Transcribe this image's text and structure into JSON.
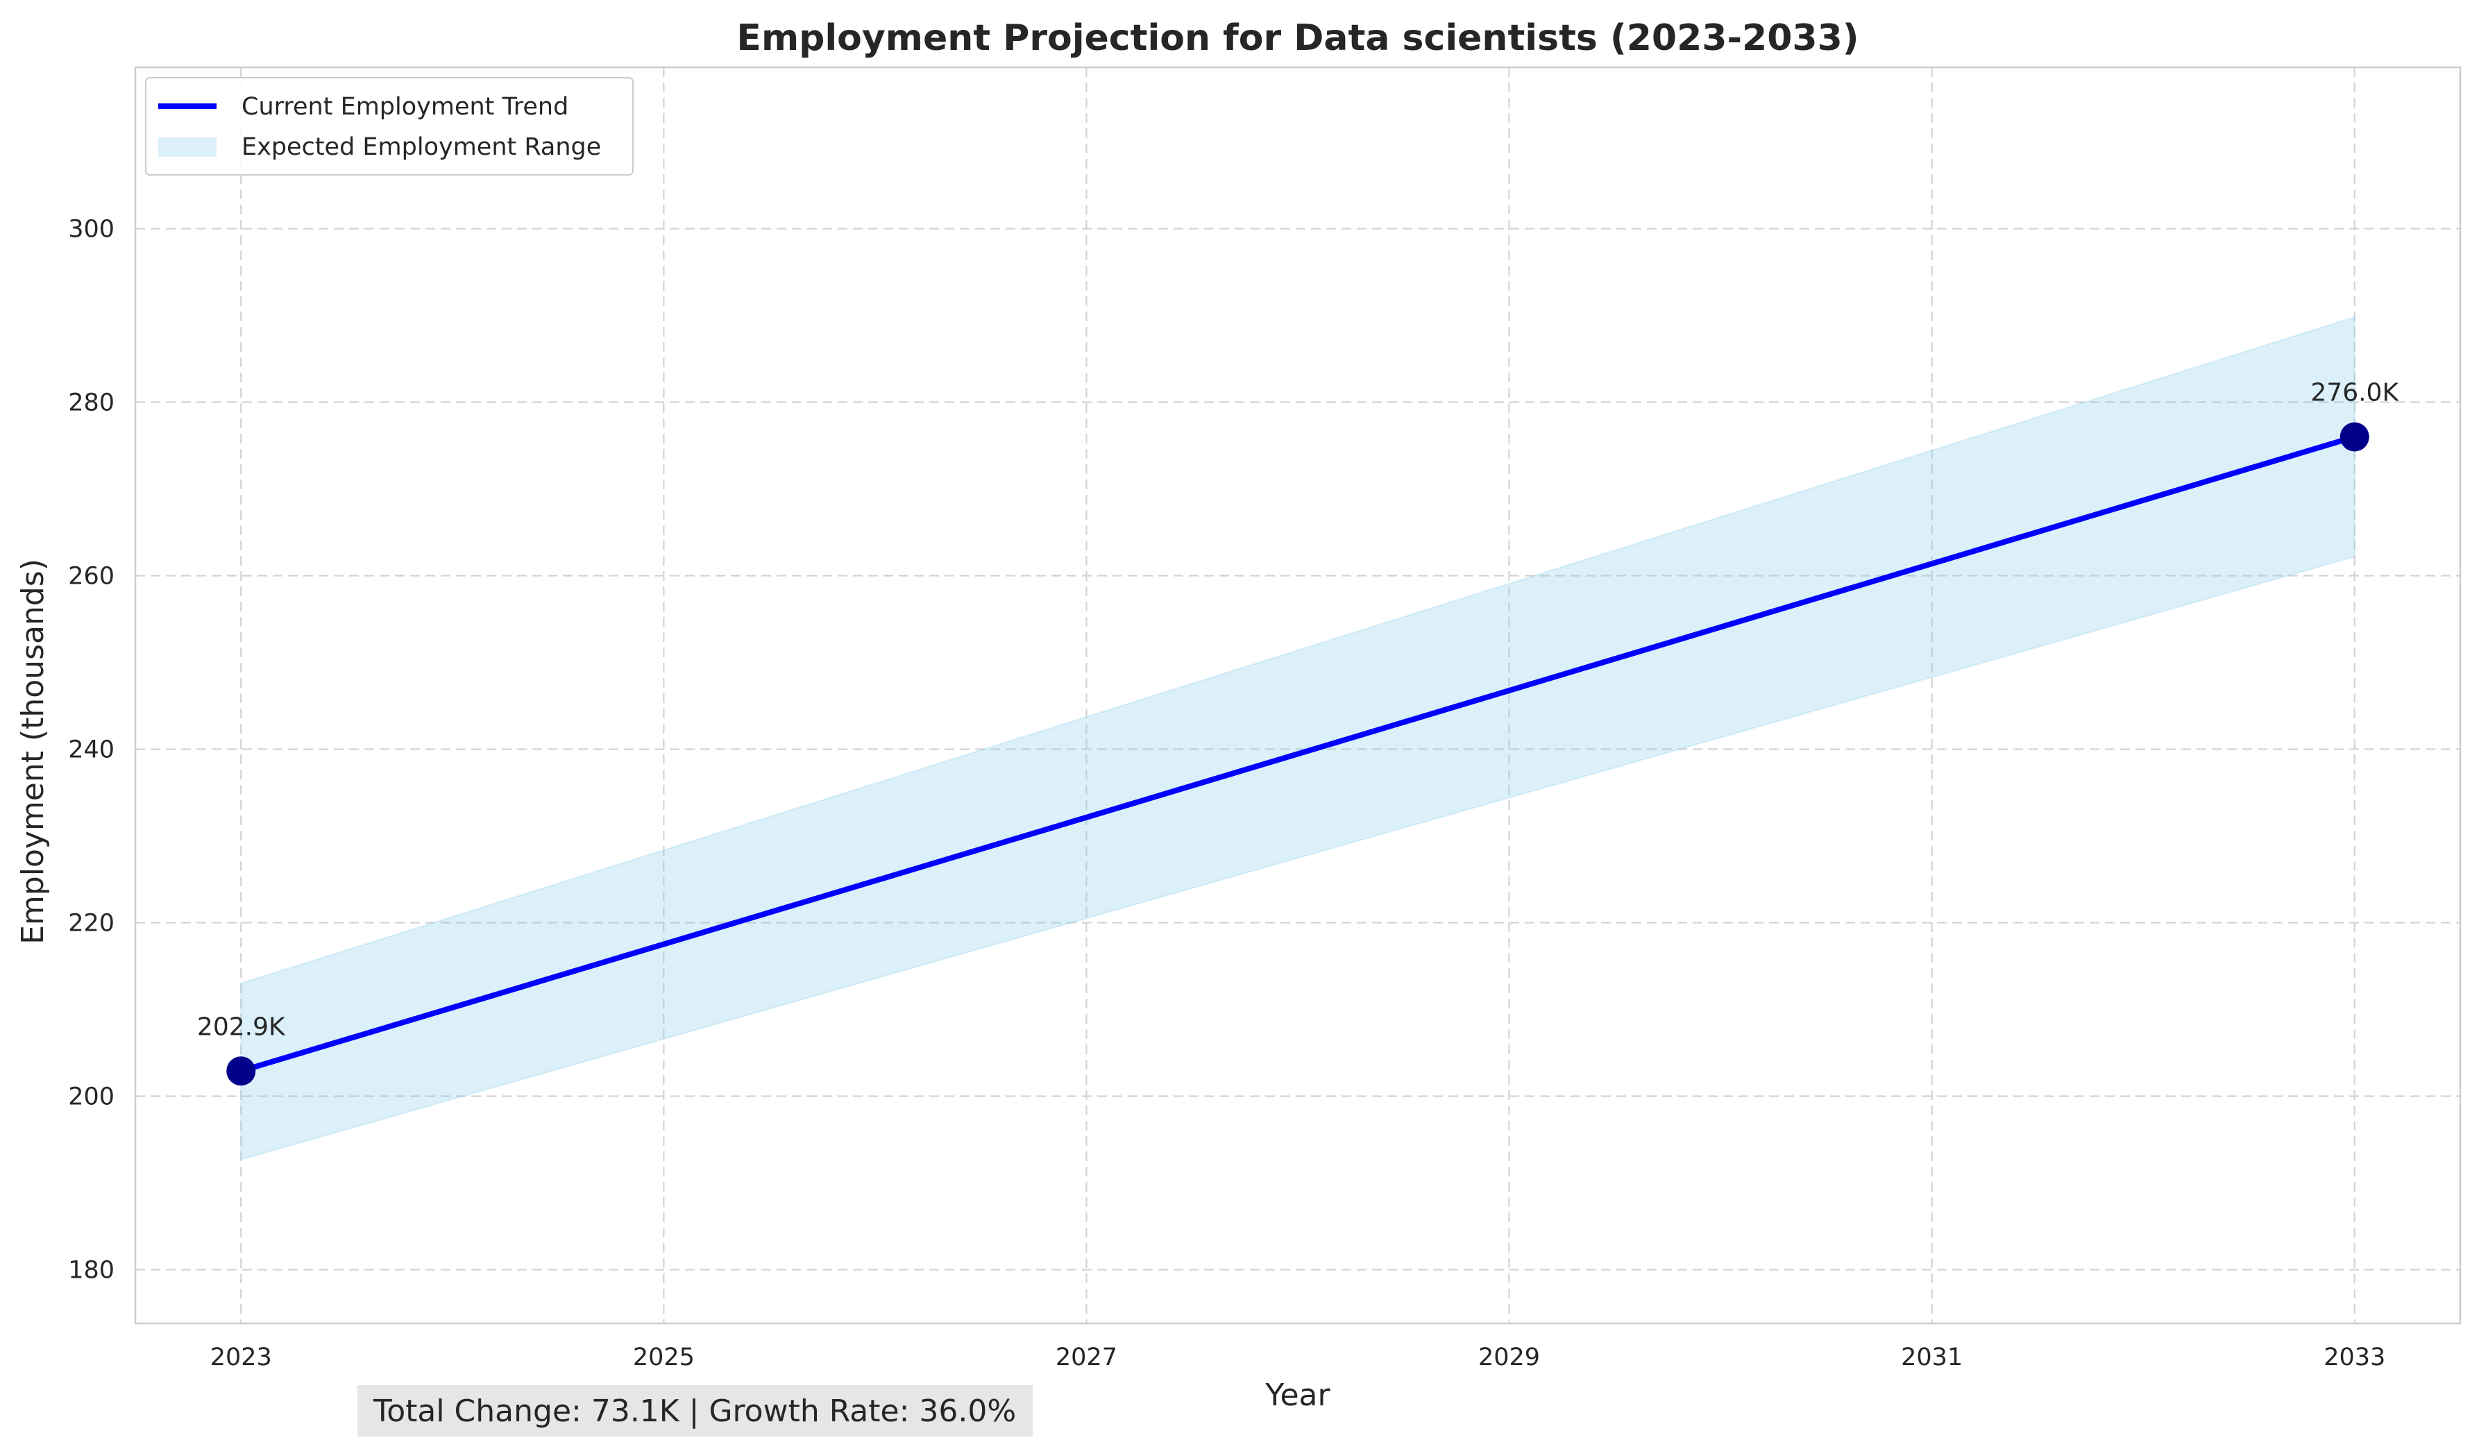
{
  "chart_data": {
    "type": "line",
    "title": "Employment Projection for Data scientists (2023-2033)",
    "xlabel": "Year",
    "ylabel": "Employment (thousands)",
    "xlim": [
      2022.5,
      2033.5
    ],
    "ylim": [
      173.8,
      318.6
    ],
    "x_ticks": [
      2023,
      2025,
      2027,
      2029,
      2031,
      2033
    ],
    "y_ticks": [
      180,
      200,
      220,
      240,
      260,
      280,
      300
    ],
    "grid": true,
    "legend_position": "top-left",
    "series": [
      {
        "name": "Current Employment Trend",
        "kind": "line",
        "color": "#0000ff",
        "x": [
          2023,
          2033
        ],
        "y": [
          202.9,
          276.0
        ]
      },
      {
        "name": "Expected Employment Range",
        "kind": "band",
        "color": "#87ceeb",
        "x": [
          2023,
          2033
        ],
        "lower": [
          192.7,
          262.2
        ],
        "upper": [
          213.0,
          289.8
        ]
      }
    ],
    "markers": {
      "color": "#00008b",
      "points": [
        {
          "x": 2023,
          "y": 202.9
        },
        {
          "x": 2033,
          "y": 276.0
        }
      ]
    },
    "annotations": [
      {
        "x": 2023,
        "y": 202.9,
        "text": "202.9K"
      },
      {
        "x": 2033,
        "y": 276.0,
        "text": "276.0K"
      }
    ],
    "stats_text": "Total Change: 73.1K | Growth Rate: 36.0%"
  }
}
